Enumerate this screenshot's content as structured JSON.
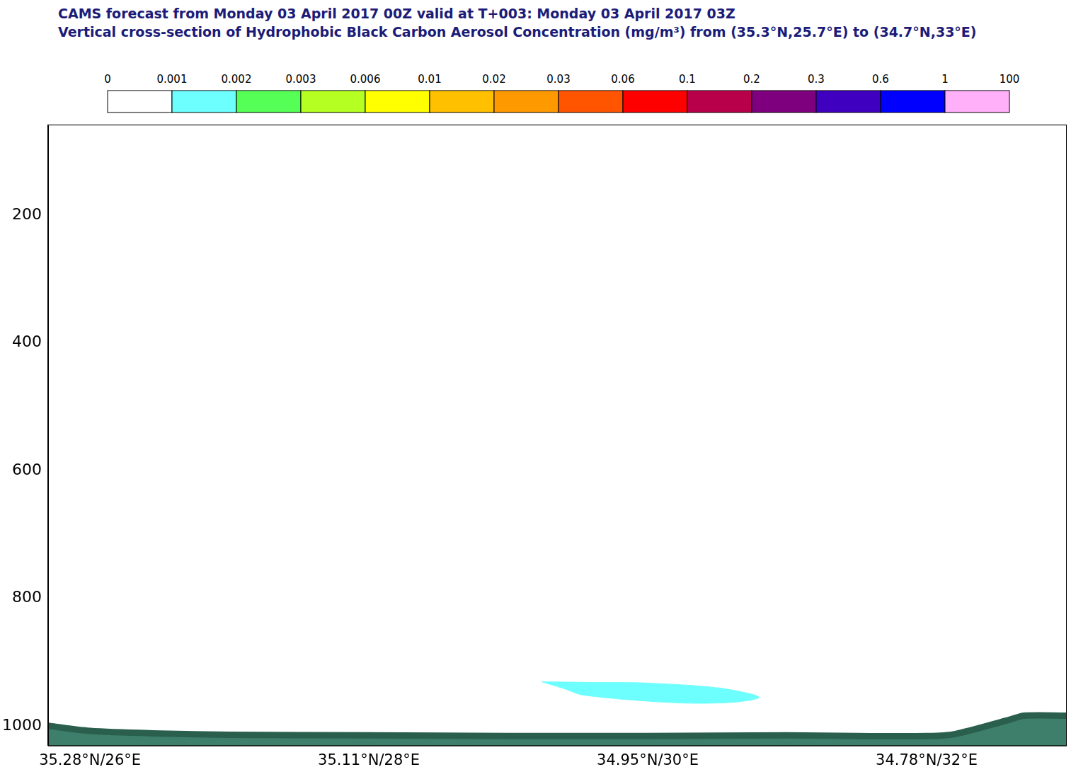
{
  "chart_data": {
    "type": "cross_section",
    "title": "CAMS forecast from Monday 03 April 2017 00Z valid at T+003: Monday 03 April 2017 03Z",
    "subtitle": "Vertical cross-section of Hydrophobic Black Carbon Aerosol Concentration (mg/m³) from (35.3°N,25.7°E) to (34.7°N,33°E)",
    "xlim": [
      25.7,
      33
    ],
    "xticks": [
      {
        "value": 26,
        "label": "35.28°N/26°E"
      },
      {
        "value": 28,
        "label": "35.11°N/28°E"
      },
      {
        "value": 30,
        "label": "34.95°N/30°E"
      },
      {
        "value": 32,
        "label": "34.78°N/32°E"
      }
    ],
    "ylim": [
      58,
      1031
    ],
    "yticks": [
      200,
      400,
      600,
      800,
      1000
    ],
    "grid": false,
    "colorbar": {
      "ticks": [
        0,
        0.001,
        0.002,
        0.003,
        0.006,
        0.01,
        0.02,
        0.03,
        0.06,
        0.1,
        0.2,
        0.3,
        0.6,
        1,
        100
      ],
      "colors": [
        "#ffffff",
        "#6dfffe",
        "#55ff55",
        "#b5ff22",
        "#ffff00",
        "#ffc000",
        "#ff9900",
        "#ff5500",
        "#ff0000",
        "#b8004a",
        "#7f007f",
        "#3f00bf",
        "#0000ff",
        "#ffb0f8"
      ]
    },
    "series": [
      {
        "type": "area",
        "color": "#6dfffe",
        "x": [
          29.24,
          29.6,
          30.0,
          30.52,
          30.8,
          30.62,
          30.21,
          29.54,
          29.39,
          29.24
        ],
        "values": [
          931,
          932,
          933,
          941,
          955,
          963,
          964,
          952,
          941,
          931
        ]
      },
      {
        "type": "area",
        "color": "#3d7f6a",
        "x": [
          25.7,
          26.0,
          26.5,
          27.0,
          28.0,
          29.0,
          30.0,
          31.0,
          31.5,
          32.0,
          32.2,
          32.6,
          32.7,
          33.0
        ],
        "values": [
          1000,
          1008,
          1012,
          1014,
          1015,
          1016,
          1016,
          1015,
          1016,
          1016,
          1013,
          990,
          984,
          984
        ]
      }
    ]
  }
}
